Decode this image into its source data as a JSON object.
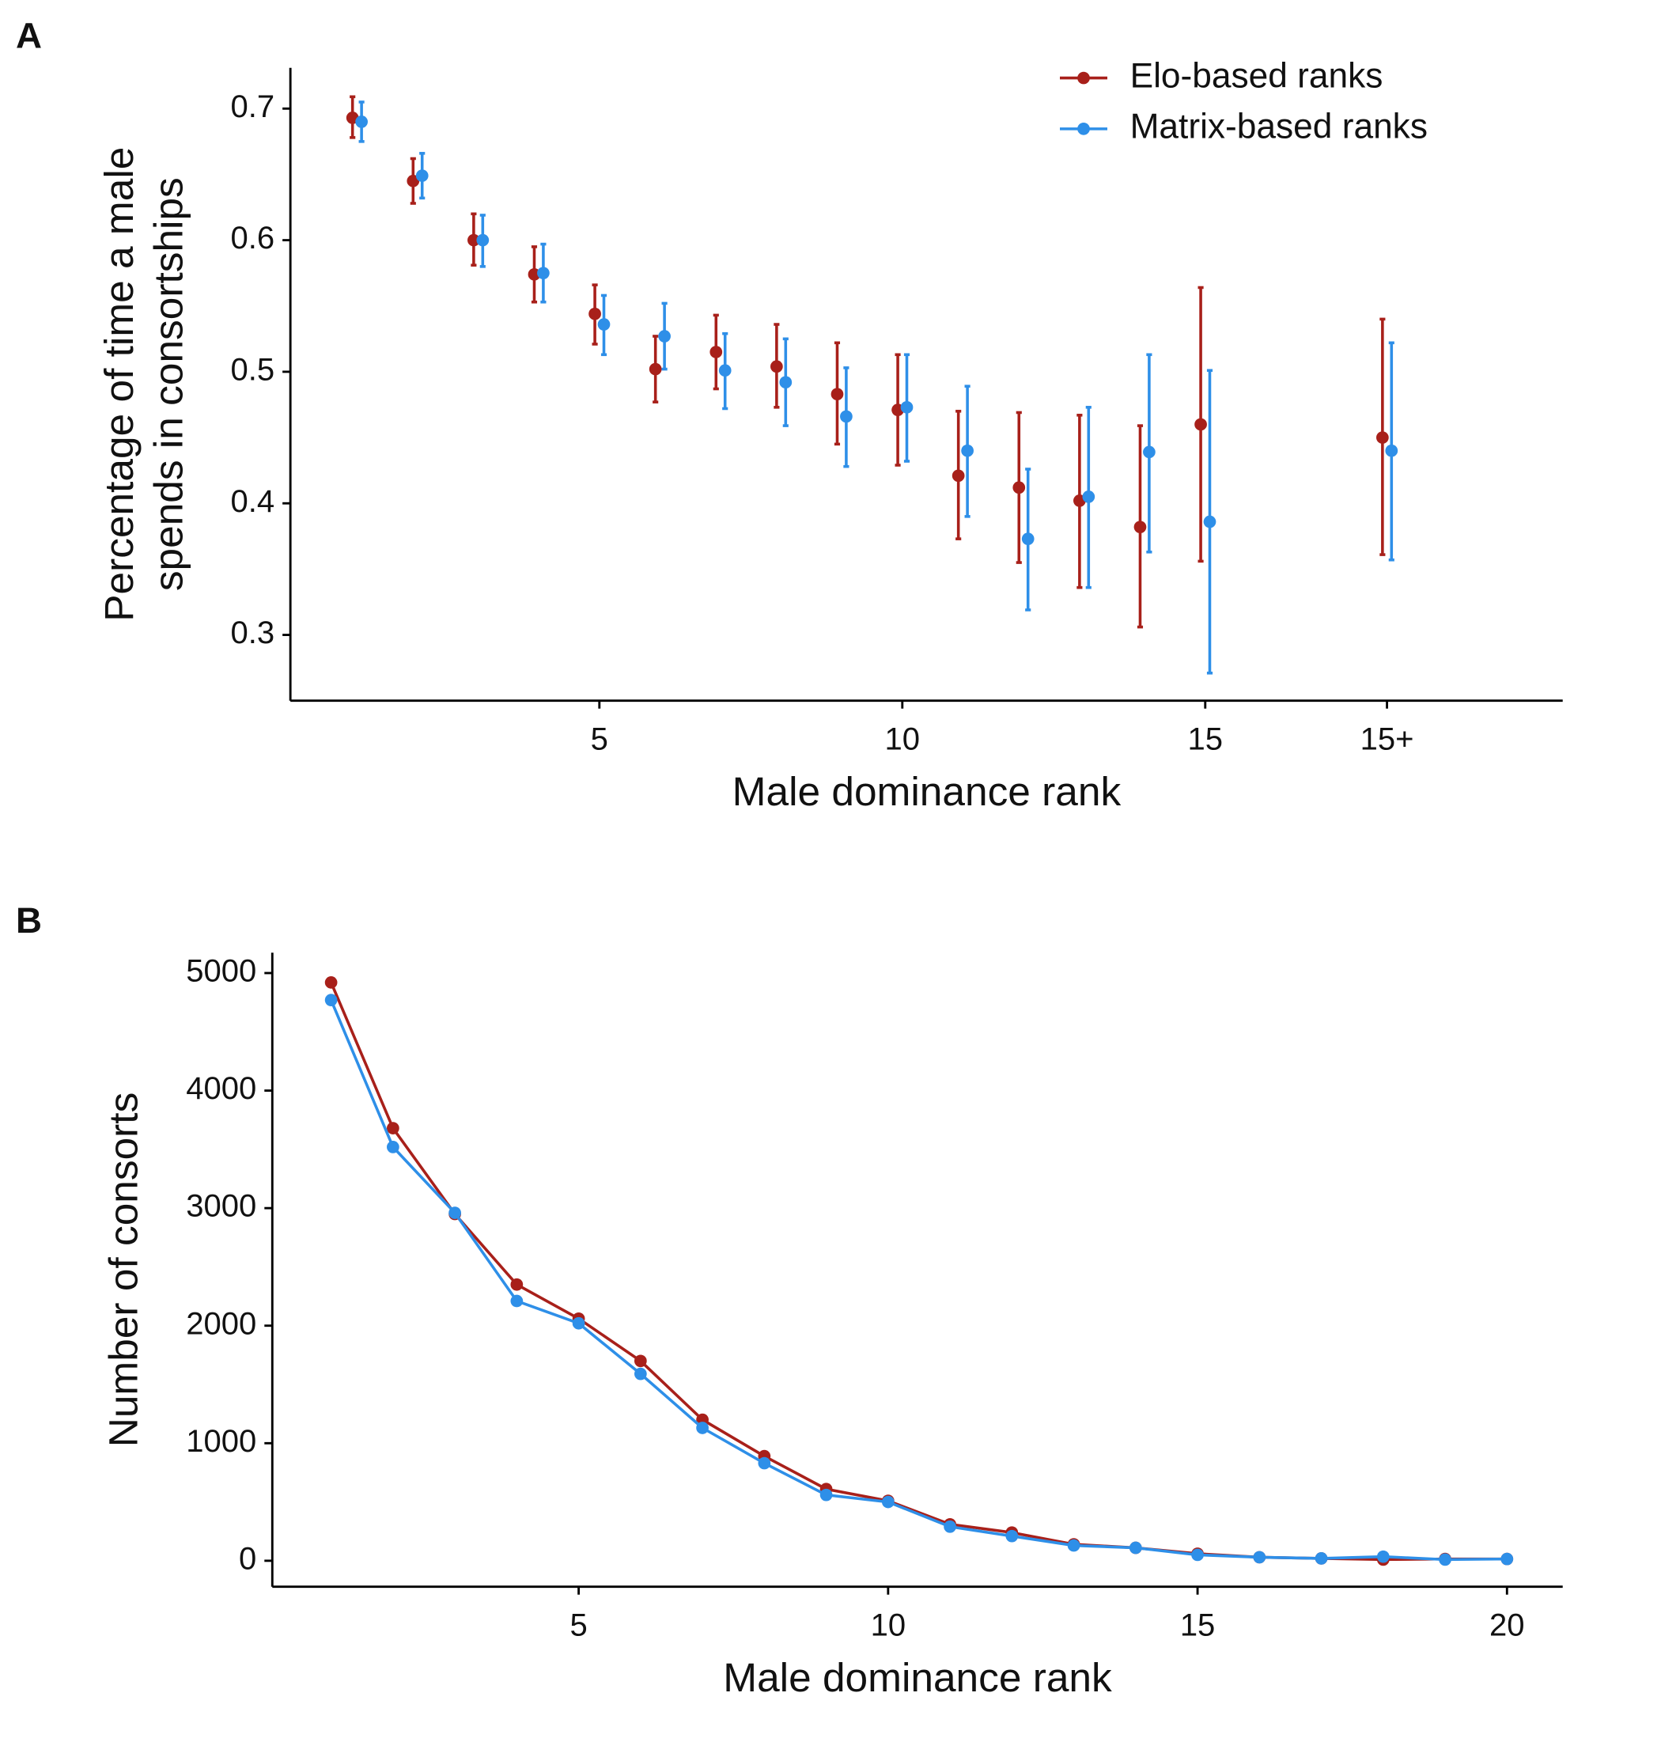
{
  "chart_data": [
    {
      "type": "errorbar",
      "panel_label": "A",
      "xlabel": "Male dominance rank",
      "ylabel": [
        "Percentage of time a male",
        "spends in consortships"
      ],
      "x": [
        1,
        2,
        3,
        4,
        5,
        6,
        7,
        8,
        9,
        10,
        11,
        12,
        13,
        14,
        15,
        18
      ],
      "xlim": [
        -0.1,
        20.9
      ],
      "xticks": [
        5,
        10,
        15,
        {
          "value": 18,
          "label": "15+"
        }
      ],
      "ylim": [
        0.25,
        0.731
      ],
      "yticks": [
        0.3,
        0.4,
        0.5,
        0.6,
        0.7
      ],
      "legend": "top-right",
      "series": [
        {
          "name": "Elo-based ranks",
          "color": "#a8201a",
          "values": [
            0.693,
            0.645,
            0.6,
            0.574,
            0.544,
            0.502,
            0.515,
            0.504,
            0.483,
            0.471,
            0.421,
            0.412,
            0.402,
            0.382,
            0.46,
            0.45
          ],
          "lower": [
            0.678,
            0.628,
            0.581,
            0.553,
            0.521,
            0.477,
            0.487,
            0.473,
            0.445,
            0.429,
            0.373,
            0.355,
            0.336,
            0.306,
            0.356,
            0.361
          ],
          "upper": [
            0.709,
            0.662,
            0.62,
            0.595,
            0.566,
            0.527,
            0.543,
            0.536,
            0.522,
            0.513,
            0.47,
            0.469,
            0.467,
            0.459,
            0.564,
            0.54
          ]
        },
        {
          "name": "Matrix-based ranks",
          "color": "#2e8fe8",
          "values": [
            0.69,
            0.649,
            0.6,
            0.575,
            0.536,
            0.527,
            0.501,
            0.492,
            0.466,
            0.473,
            0.44,
            0.373,
            0.405,
            0.439,
            0.386,
            0.44
          ],
          "lower": [
            0.675,
            0.632,
            0.58,
            0.553,
            0.513,
            0.502,
            0.472,
            0.459,
            0.428,
            0.432,
            0.39,
            0.319,
            0.336,
            0.363,
            0.271,
            0.357
          ],
          "upper": [
            0.705,
            0.666,
            0.619,
            0.597,
            0.558,
            0.552,
            0.529,
            0.525,
            0.503,
            0.513,
            0.489,
            0.426,
            0.473,
            0.513,
            0.501,
            0.522
          ]
        }
      ]
    },
    {
      "type": "line",
      "panel_label": "B",
      "xlabel": "Male dominance rank",
      "ylabel": [
        "Number of consorts"
      ],
      "x": [
        1,
        2,
        3,
        4,
        5,
        6,
        7,
        8,
        9,
        10,
        11,
        12,
        13,
        14,
        15,
        16,
        17,
        18,
        19,
        20
      ],
      "xlim": [
        0.05,
        20.9
      ],
      "xticks": [
        5,
        10,
        15,
        20
      ],
      "ylim": [
        -221,
        5173
      ],
      "yticks": [
        0,
        1000,
        2000,
        3000,
        4000,
        5000
      ],
      "series": [
        {
          "name": "Elo-based ranks",
          "color": "#a8201a",
          "values": [
            4920,
            3680,
            2950,
            2350,
            2060,
            1700,
            1200,
            890,
            610,
            510,
            310,
            240,
            140,
            110,
            60,
            30,
            20,
            10,
            15,
            15
          ]
        },
        {
          "name": "Matrix-based ranks",
          "color": "#2e8fe8",
          "values": [
            4770,
            3520,
            2960,
            2210,
            2020,
            1590,
            1130,
            830,
            560,
            500,
            290,
            210,
            130,
            110,
            50,
            30,
            20,
            35,
            10,
            15
          ]
        }
      ]
    }
  ]
}
